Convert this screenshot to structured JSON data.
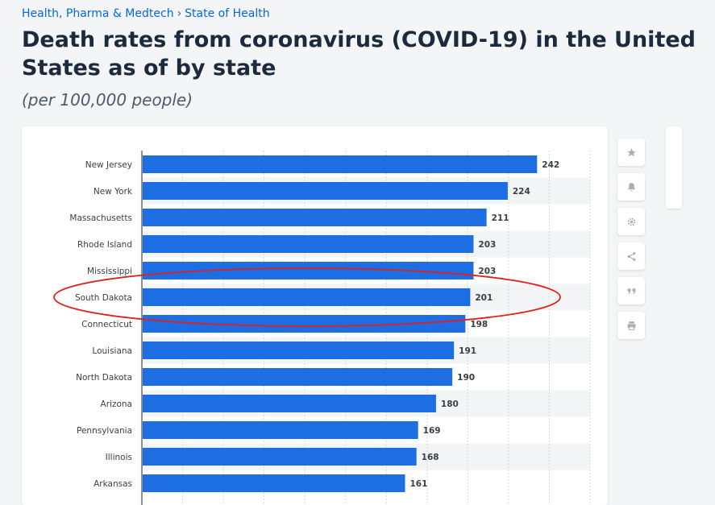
{
  "breadcrumb": {
    "category": "Health, Pharma & Medtech",
    "separator": "›",
    "topic": "State of Health"
  },
  "header": {
    "title": "Death rates from coronavirus (COVID-19) in the United States as of by state",
    "subtitle": "(per 100,000 people)"
  },
  "toolbar": {
    "icons": [
      "star-icon",
      "bell-icon",
      "gear-icon",
      "share-icon",
      "quote-icon",
      "print-icon"
    ]
  },
  "chart_data": {
    "type": "bar",
    "orientation": "horizontal",
    "categories": [
      "New Jersey",
      "New York",
      "Massachusetts",
      "Rhode Island",
      "Mississippi",
      "South Dakota",
      "Connecticut",
      "Louisiana",
      "North Dakota",
      "Arizona",
      "Pennsylvania",
      "Illinois",
      "Arkansas"
    ],
    "values": [
      242,
      224,
      211,
      203,
      203,
      201,
      198,
      191,
      190,
      180,
      169,
      168,
      161
    ],
    "value_labels": [
      "242",
      "224",
      "211",
      "203",
      "203",
      "201",
      "198",
      "191",
      "190",
      "180",
      "169",
      "168",
      "161"
    ],
    "xlim": [
      0,
      275
    ],
    "grid": true,
    "bar_color": "#1e6ee3",
    "highlight_category": "South Dakota",
    "highlight_color": "#e0201b"
  }
}
